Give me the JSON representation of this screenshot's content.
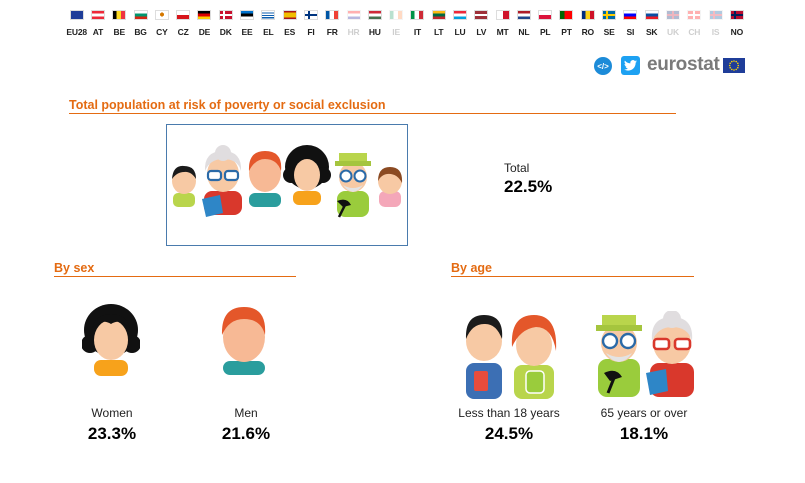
{
  "countries": [
    {
      "code": "EU28",
      "flag": "eu",
      "enabled": true
    },
    {
      "code": "AT",
      "flag": "at",
      "enabled": true
    },
    {
      "code": "BE",
      "flag": "be",
      "enabled": true
    },
    {
      "code": "BG",
      "flag": "bg",
      "enabled": true
    },
    {
      "code": "CY",
      "flag": "cy",
      "enabled": true
    },
    {
      "code": "CZ",
      "flag": "cz",
      "enabled": true
    },
    {
      "code": "DE",
      "flag": "de",
      "enabled": true
    },
    {
      "code": "DK",
      "flag": "dk",
      "enabled": true
    },
    {
      "code": "EE",
      "flag": "ee",
      "enabled": true
    },
    {
      "code": "EL",
      "flag": "el",
      "enabled": true
    },
    {
      "code": "ES",
      "flag": "es",
      "enabled": true
    },
    {
      "code": "FI",
      "flag": "fi",
      "enabled": true
    },
    {
      "code": "FR",
      "flag": "fr",
      "enabled": true
    },
    {
      "code": "HR",
      "flag": "hr",
      "enabled": false
    },
    {
      "code": "HU",
      "flag": "hu",
      "enabled": true
    },
    {
      "code": "IE",
      "flag": "ie",
      "enabled": false
    },
    {
      "code": "IT",
      "flag": "it",
      "enabled": true
    },
    {
      "code": "LT",
      "flag": "lt",
      "enabled": true
    },
    {
      "code": "LU",
      "flag": "lu",
      "enabled": true
    },
    {
      "code": "LV",
      "flag": "lv",
      "enabled": true
    },
    {
      "code": "MT",
      "flag": "mt",
      "enabled": true
    },
    {
      "code": "NL",
      "flag": "nl",
      "enabled": true
    },
    {
      "code": "PL",
      "flag": "pl",
      "enabled": true
    },
    {
      "code": "PT",
      "flag": "pt",
      "enabled": true
    },
    {
      "code": "RO",
      "flag": "ro",
      "enabled": true
    },
    {
      "code": "SE",
      "flag": "se",
      "enabled": true
    },
    {
      "code": "SI",
      "flag": "si",
      "enabled": true
    },
    {
      "code": "SK",
      "flag": "sk",
      "enabled": true
    },
    {
      "code": "UK",
      "flag": "uk",
      "enabled": false
    },
    {
      "code": "CH",
      "flag": "ch",
      "enabled": false
    },
    {
      "code": "IS",
      "flag": "is",
      "enabled": false
    },
    {
      "code": "NO",
      "flag": "no",
      "enabled": true
    }
  ],
  "toolbar": {
    "embed_icon": "code-embed-icon",
    "twitter_icon": "twitter-icon"
  },
  "logo": {
    "text": "eurostat",
    "flag_icon": "eu-flag-icon"
  },
  "colors": {
    "accent": "#e46b12",
    "box_border": "#4a7bad",
    "text_disabled": "#cfcfcf"
  },
  "total_section": {
    "heading": "Total population at risk of poverty or social exclusion",
    "label": "Total",
    "value": "22.5%"
  },
  "sex_section": {
    "heading": "By sex",
    "items": [
      {
        "label": "Women",
        "value": "23.3%"
      },
      {
        "label": "Men",
        "value": "21.6%"
      }
    ]
  },
  "age_section": {
    "heading": "By age",
    "items": [
      {
        "label": "Less than 18 years",
        "value": "24.5%"
      },
      {
        "label": "65 years or over",
        "value": "18.1%"
      }
    ]
  }
}
